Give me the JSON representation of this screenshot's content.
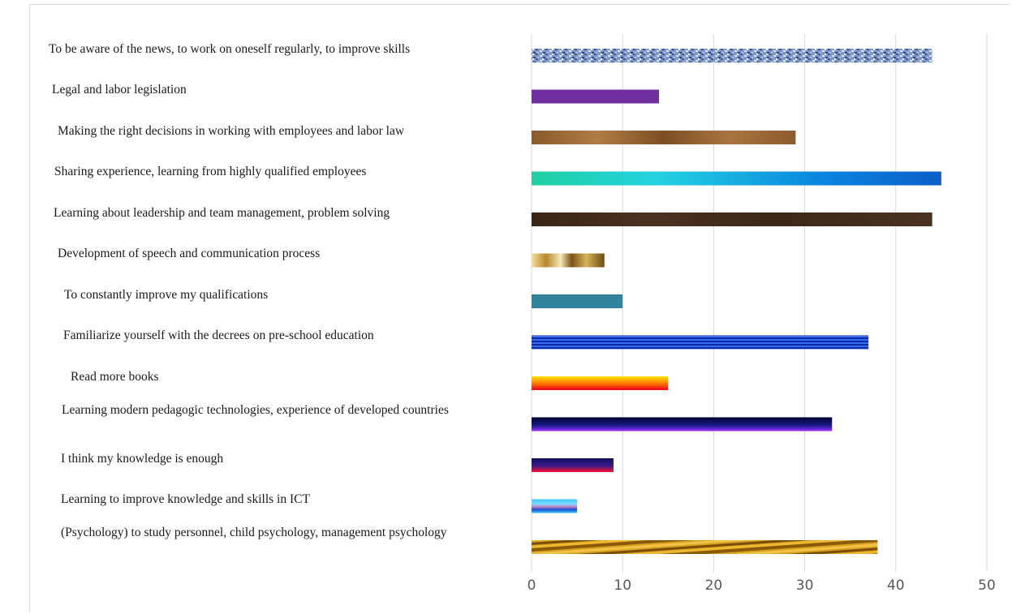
{
  "chart_data": {
    "type": "bar",
    "orientation": "horizontal",
    "categories": [
      "To be aware of the news, to work on oneself regularly, to improve skills",
      "Legal and labor legislation",
      "Making the right decisions in working with employees and labor law",
      "Sharing experience, learning from highly qualified employees",
      "Learning about leadership and team management, problem solving",
      "Development of speech and communication process",
      "To constantly improve my qualifications",
      "Familiarize yourself with the decrees on pre-school education",
      "Read more books",
      "Learning modern pedagogic technologies, experience of developed countries",
      "I think my knowledge is enough",
      "Learning to improve knowledge and skills in ICT",
      "(Psychology) to study personnel, child psychology, management psychology"
    ],
    "values": [
      44,
      14,
      29,
      45,
      44,
      8,
      10,
      37,
      15,
      33,
      9,
      5,
      38
    ],
    "xlim": [
      0,
      50
    ],
    "ticks": [
      "0",
      "10",
      "20",
      "30",
      "40",
      "50"
    ],
    "title": "",
    "xlabel": "",
    "ylabel": "",
    "grid": "vertical",
    "legend": "none",
    "bar_styles": [
      "denim",
      "purple",
      "wood-light",
      "teal-gradient",
      "wood-dark",
      "gold",
      "teal",
      "blue-stripes",
      "fire",
      "navy-purple",
      "navy-red",
      "sky-stripes",
      "gold-diagonal"
    ],
    "colors": {
      "gridline": "#d9d9d9",
      "tick_text": "#595959",
      "label_text": "#1a1a1a"
    }
  }
}
